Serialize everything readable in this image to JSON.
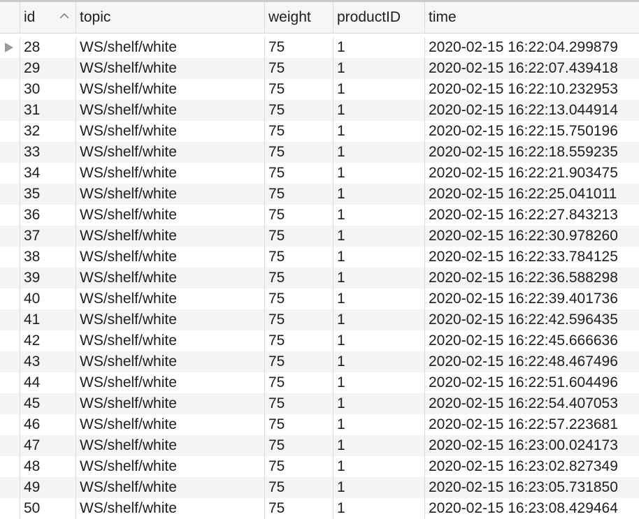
{
  "table": {
    "columns": [
      {
        "key": "id",
        "label": "id",
        "sorted": "ascending"
      },
      {
        "key": "topic",
        "label": "topic"
      },
      {
        "key": "weight",
        "label": "weight"
      },
      {
        "key": "productID",
        "label": "productID"
      },
      {
        "key": "time",
        "label": "time"
      }
    ],
    "current_row_index": 0,
    "rows": [
      {
        "id": "28",
        "topic": "WS/shelf/white",
        "weight": "75",
        "productID": "1",
        "time": "2020-02-15 16:22:04.299879"
      },
      {
        "id": "29",
        "topic": "WS/shelf/white",
        "weight": "75",
        "productID": "1",
        "time": "2020-02-15 16:22:07.439418"
      },
      {
        "id": "30",
        "topic": "WS/shelf/white",
        "weight": "75",
        "productID": "1",
        "time": "2020-02-15 16:22:10.232953"
      },
      {
        "id": "31",
        "topic": "WS/shelf/white",
        "weight": "75",
        "productID": "1",
        "time": "2020-02-15 16:22:13.044914"
      },
      {
        "id": "32",
        "topic": "WS/shelf/white",
        "weight": "75",
        "productID": "1",
        "time": "2020-02-15 16:22:15.750196"
      },
      {
        "id": "33",
        "topic": "WS/shelf/white",
        "weight": "75",
        "productID": "1",
        "time": "2020-02-15 16:22:18.559235"
      },
      {
        "id": "34",
        "topic": "WS/shelf/white",
        "weight": "75",
        "productID": "1",
        "time": "2020-02-15 16:22:21.903475"
      },
      {
        "id": "35",
        "topic": "WS/shelf/white",
        "weight": "75",
        "productID": "1",
        "time": "2020-02-15 16:22:25.041011"
      },
      {
        "id": "36",
        "topic": "WS/shelf/white",
        "weight": "75",
        "productID": "1",
        "time": "2020-02-15 16:22:27.843213"
      },
      {
        "id": "37",
        "topic": "WS/shelf/white",
        "weight": "75",
        "productID": "1",
        "time": "2020-02-15 16:22:30.978260"
      },
      {
        "id": "38",
        "topic": "WS/shelf/white",
        "weight": "75",
        "productID": "1",
        "time": "2020-02-15 16:22:33.784125"
      },
      {
        "id": "39",
        "topic": "WS/shelf/white",
        "weight": "75",
        "productID": "1",
        "time": "2020-02-15 16:22:36.588298"
      },
      {
        "id": "40",
        "topic": "WS/shelf/white",
        "weight": "75",
        "productID": "1",
        "time": "2020-02-15 16:22:39.401736"
      },
      {
        "id": "41",
        "topic": "WS/shelf/white",
        "weight": "75",
        "productID": "1",
        "time": "2020-02-15 16:22:42.596435"
      },
      {
        "id": "42",
        "topic": "WS/shelf/white",
        "weight": "75",
        "productID": "1",
        "time": "2020-02-15 16:22:45.666636"
      },
      {
        "id": "43",
        "topic": "WS/shelf/white",
        "weight": "75",
        "productID": "1",
        "time": "2020-02-15 16:22:48.467496"
      },
      {
        "id": "44",
        "topic": "WS/shelf/white",
        "weight": "75",
        "productID": "1",
        "time": "2020-02-15 16:22:51.604496"
      },
      {
        "id": "45",
        "topic": "WS/shelf/white",
        "weight": "75",
        "productID": "1",
        "time": "2020-02-15 16:22:54.407053"
      },
      {
        "id": "46",
        "topic": "WS/shelf/white",
        "weight": "75",
        "productID": "1",
        "time": "2020-02-15 16:22:57.223681"
      },
      {
        "id": "47",
        "topic": "WS/shelf/white",
        "weight": "75",
        "productID": "1",
        "time": "2020-02-15 16:23:00.024173"
      },
      {
        "id": "48",
        "topic": "WS/shelf/white",
        "weight": "75",
        "productID": "1",
        "time": "2020-02-15 16:23:02.827349"
      },
      {
        "id": "49",
        "topic": "WS/shelf/white",
        "weight": "75",
        "productID": "1",
        "time": "2020-02-15 16:23:05.731850"
      },
      {
        "id": "50",
        "topic": "WS/shelf/white",
        "weight": "75",
        "productID": "1",
        "time": "2020-02-15 16:23:08.429464"
      }
    ]
  },
  "icons": {
    "sort": "chevron-up-icon",
    "row_pointer": "triangle-right-icon"
  },
  "colors": {
    "header_bg": "#f6f6f6",
    "row_alt_bg": "#f4f4f4",
    "grid_line": "#dcdcdc",
    "pointer": "#9a9a9a",
    "text": "#1e1e1e"
  }
}
